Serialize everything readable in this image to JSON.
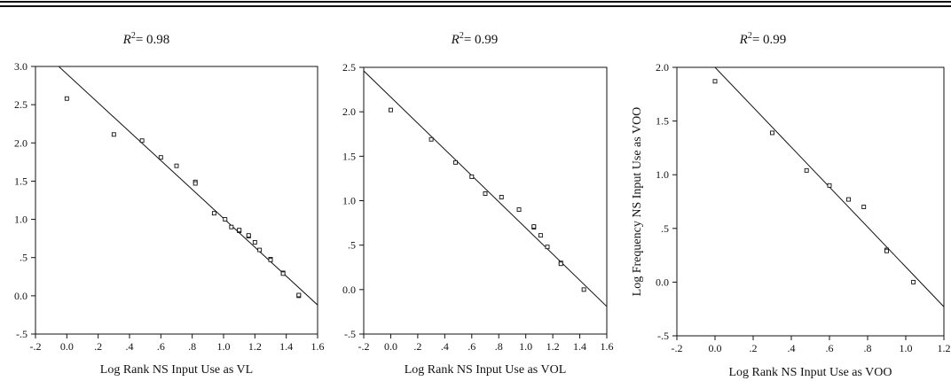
{
  "chart_data": [
    {
      "type": "scatter",
      "title_prefix": "R",
      "title_sup": "2",
      "title_value": "= 0.98",
      "xlabel": "Log Rank NS Input Use as VL",
      "ylabel": "",
      "xlim": [
        -0.2,
        1.6
      ],
      "ylim": [
        -0.5,
        3.0
      ],
      "xticks": [
        -0.2,
        0.0,
        0.2,
        0.4,
        0.6,
        0.8,
        1.0,
        1.2,
        1.4,
        1.6
      ],
      "xtick_labels": [
        "-.2",
        "0.0",
        ".2",
        ".4",
        ".6",
        ".8",
        "1.0",
        "1.2",
        "1.4",
        "1.6"
      ],
      "yticks": [
        -0.5,
        0.0,
        0.5,
        1.0,
        1.5,
        2.0,
        2.5,
        3.0
      ],
      "ytick_labels": [
        "-.5",
        "0.0",
        ".5",
        "1.0",
        "1.5",
        "2.0",
        "2.5",
        "3.0"
      ],
      "points": [
        [
          0.0,
          2.58
        ],
        [
          0.3,
          2.11
        ],
        [
          0.48,
          2.03
        ],
        [
          0.6,
          1.81
        ],
        [
          0.7,
          1.7
        ],
        [
          0.82,
          1.49
        ],
        [
          0.82,
          1.47
        ],
        [
          0.94,
          1.08
        ],
        [
          1.01,
          1.0
        ],
        [
          1.05,
          0.9
        ],
        [
          1.1,
          0.85
        ],
        [
          1.1,
          0.86
        ],
        [
          1.16,
          0.78
        ],
        [
          1.16,
          0.79
        ],
        [
          1.2,
          0.7
        ],
        [
          1.23,
          0.6
        ],
        [
          1.3,
          0.48
        ],
        [
          1.3,
          0.47
        ],
        [
          1.38,
          0.3
        ],
        [
          1.38,
          0.29
        ],
        [
          1.48,
          0.0
        ],
        [
          1.48,
          0.01
        ]
      ],
      "fit_line": [
        [
          -0.2,
          3.28
        ],
        [
          1.6,
          -0.12
        ]
      ]
    },
    {
      "type": "scatter",
      "title_prefix": "R",
      "title_sup": "2",
      "title_value": "= 0.99",
      "xlabel": "Log Rank NS Input Use as VOL",
      "ylabel": "",
      "xlim": [
        -0.2,
        1.6
      ],
      "ylim": [
        -0.5,
        2.5
      ],
      "xticks": [
        -0.2,
        0.0,
        0.2,
        0.4,
        0.6,
        0.8,
        1.0,
        1.2,
        1.4,
        1.6
      ],
      "xtick_labels": [
        "-.2",
        "0.0",
        ".2",
        ".4",
        ".6",
        ".8",
        "1.0",
        "1.2",
        "1.4",
        "1.6"
      ],
      "yticks": [
        -0.5,
        0.0,
        0.5,
        1.0,
        1.5,
        2.0,
        2.5
      ],
      "ytick_labels": [
        "-.5",
        "0.0",
        ".5",
        "1.0",
        "1.5",
        "2.0",
        "2.5"
      ],
      "points": [
        [
          0.0,
          2.02
        ],
        [
          0.3,
          1.69
        ],
        [
          0.48,
          1.43
        ],
        [
          0.6,
          1.27
        ],
        [
          0.7,
          1.08
        ],
        [
          0.82,
          1.04
        ],
        [
          0.95,
          0.9
        ],
        [
          1.06,
          0.7
        ],
        [
          1.06,
          0.71
        ],
        [
          1.11,
          0.61
        ],
        [
          1.16,
          0.48
        ],
        [
          1.26,
          0.3
        ],
        [
          1.26,
          0.29
        ],
        [
          1.43,
          0.0
        ]
      ],
      "fit_line": [
        [
          -0.2,
          2.46
        ],
        [
          1.6,
          -0.19
        ]
      ]
    },
    {
      "type": "scatter",
      "title_prefix": "R",
      "title_sup": "2",
      "title_value": "= 0.99",
      "xlabel": "Log Rank NS Input Use as VOO",
      "ylabel": "Log Frequency NS Input Use as VOO",
      "xlim": [
        -0.2,
        1.2
      ],
      "ylim": [
        -0.5,
        2.0
      ],
      "xticks": [
        -0.2,
        0.0,
        0.2,
        0.4,
        0.6,
        0.8,
        1.0,
        1.2
      ],
      "xtick_labels": [
        "-.2",
        "0.0",
        ".2",
        ".4",
        ".6",
        ".8",
        "1.0",
        "1.2"
      ],
      "yticks": [
        -0.5,
        0.0,
        0.5,
        1.0,
        1.5,
        2.0
      ],
      "ytick_labels": [
        "-.5",
        "0.0",
        ".5",
        "1.0",
        "1.5",
        "2.0"
      ],
      "points": [
        [
          0.0,
          1.87
        ],
        [
          0.3,
          1.39
        ],
        [
          0.48,
          1.04
        ],
        [
          0.6,
          0.9
        ],
        [
          0.7,
          0.77
        ],
        [
          0.78,
          0.7
        ],
        [
          0.9,
          0.3
        ],
        [
          0.9,
          0.29
        ],
        [
          1.04,
          0.0
        ]
      ],
      "fit_line": [
        [
          0.0,
          2.0
        ],
        [
          1.2,
          -0.23
        ]
      ]
    }
  ]
}
